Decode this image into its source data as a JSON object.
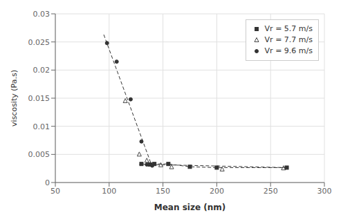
{
  "chart_data": {
    "type": "scatter",
    "xlabel": "Mean size (nm)",
    "ylabel": "viscosity (Pa.s)",
    "xlim": [
      50,
      300
    ],
    "ylim": [
      0,
      0.03
    ],
    "xticks": [
      50,
      100,
      150,
      200,
      250,
      300
    ],
    "yticks": [
      0,
      0.005,
      0.01,
      0.015,
      0.02,
      0.025,
      0.03
    ],
    "grid": true,
    "legend": "upper right",
    "series": [
      {
        "name": "Vr = 5.7 m/s",
        "type": "line",
        "color": "#333333",
        "marker": "square",
        "line_style": "dashed",
        "x": [
          130,
          138,
          142,
          155,
          175,
          200,
          265
        ],
        "values": [
          0.0033,
          0.0032,
          0.0033,
          0.0033,
          0.0028,
          0.00265,
          0.00265
        ]
      },
      {
        "name": "Vr = 7.7 m/s",
        "type": "scatter",
        "color": "#333333",
        "marker": "triangle_open",
        "line_style": "none",
        "x": [
          115,
          128,
          135,
          148,
          158,
          205,
          262
        ],
        "values": [
          0.0145,
          0.005,
          0.0039,
          0.0031,
          0.00275,
          0.00235,
          0.00255
        ]
      },
      {
        "name": "Vr = 9.6 m/s",
        "type": "scatter",
        "color": "#333333",
        "marker": "circle",
        "line_style": "none",
        "x": [
          98,
          107,
          120,
          130,
          135,
          140
        ],
        "values": [
          0.0248,
          0.0215,
          0.0148,
          0.0073,
          0.0032,
          0.003
        ]
      },
      {
        "type": "line",
        "color": "#333333",
        "marker": "none",
        "line_style": "dashed",
        "x": [
          95,
          140
        ],
        "values": [
          0.0263,
          0.0028
        ]
      },
      {
        "type": "line",
        "color": "#333333",
        "marker": "none",
        "line_style": "dashed",
        "x": [
          128,
          265
        ],
        "values": [
          0.00325,
          0.00265
        ]
      }
    ]
  }
}
